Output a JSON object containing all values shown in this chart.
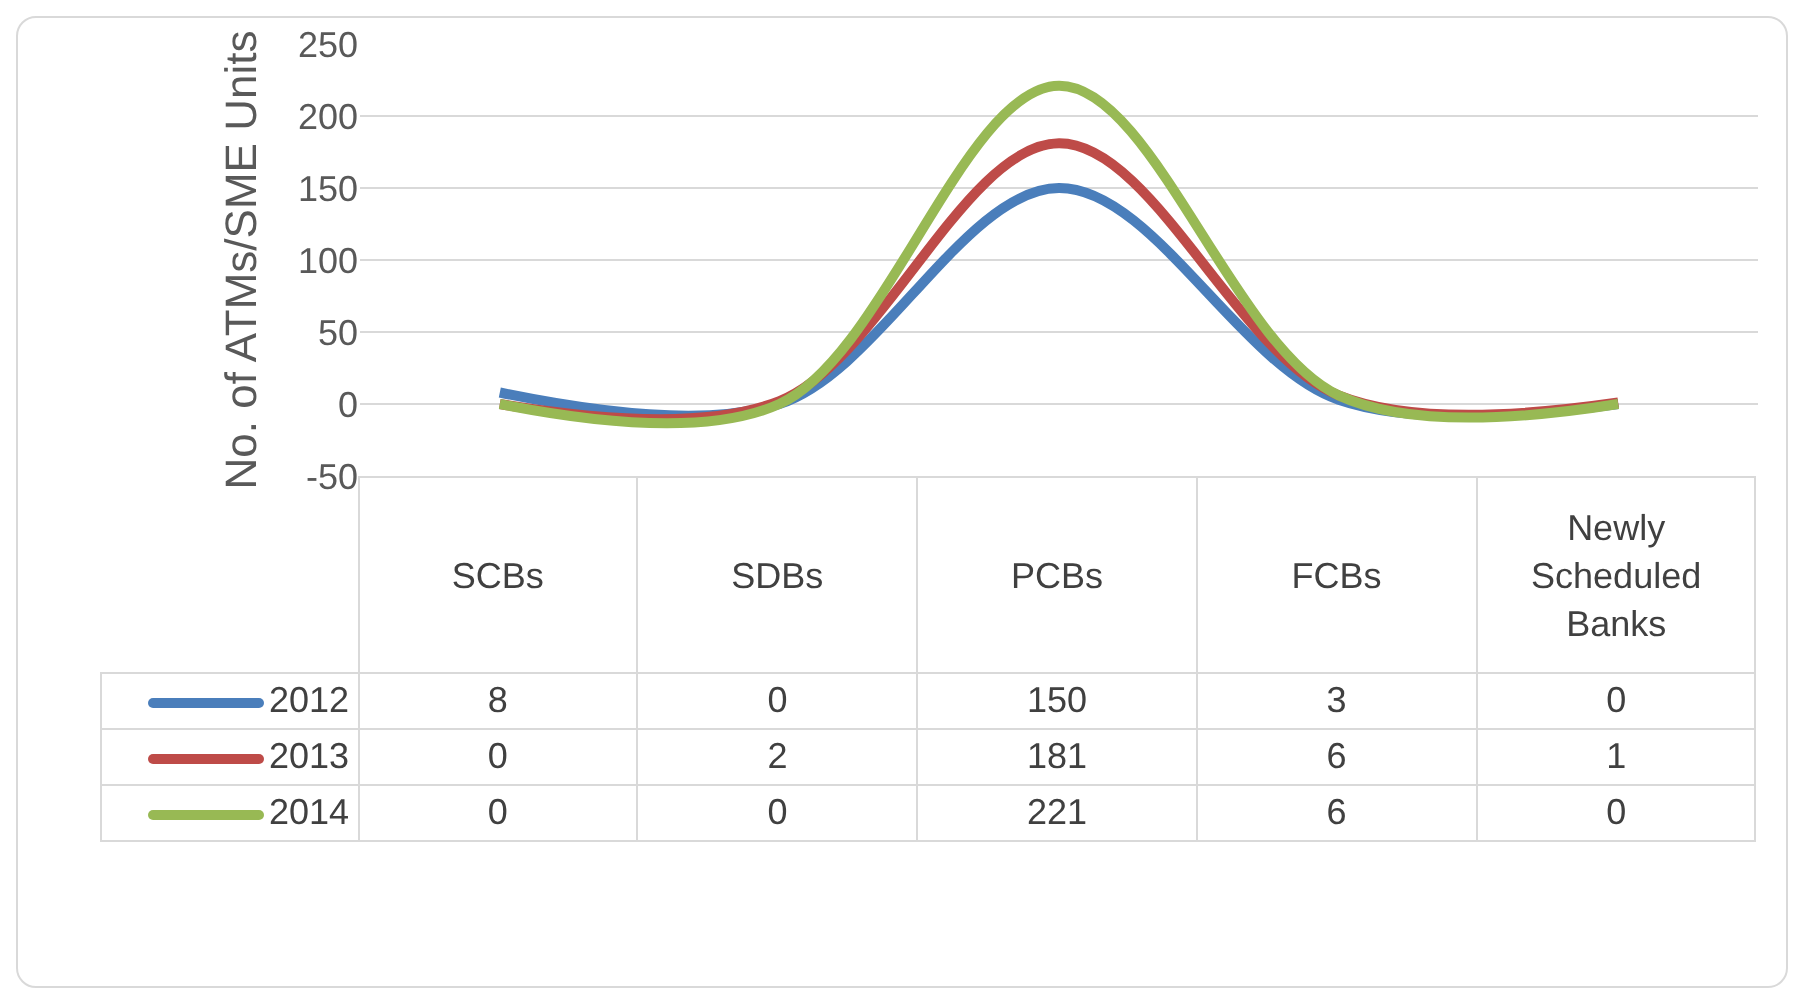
{
  "chart_data": {
    "type": "line",
    "ylabel": "No. of ATMs/SME Units",
    "categories": [
      "SCBs",
      "SDBs",
      "PCBs",
      "FCBs",
      "Newly Scheduled Banks"
    ],
    "series": [
      {
        "name": "2012",
        "color": "#4a7ebb",
        "values": [
          8,
          0,
          150,
          3,
          0
        ]
      },
      {
        "name": "2013",
        "color": "#be4b48",
        "values": [
          0,
          2,
          181,
          6,
          1
        ]
      },
      {
        "name": "2014",
        "color": "#98b954",
        "values": [
          0,
          0,
          221,
          6,
          0
        ]
      }
    ],
    "ylim": [
      -50,
      250
    ],
    "yticks": [
      -50,
      0,
      50,
      100,
      150,
      200,
      250
    ],
    "grid": "y",
    "data_labels": true,
    "legend": "bottom left",
    "marker": "none",
    "line_style": "solid"
  }
}
